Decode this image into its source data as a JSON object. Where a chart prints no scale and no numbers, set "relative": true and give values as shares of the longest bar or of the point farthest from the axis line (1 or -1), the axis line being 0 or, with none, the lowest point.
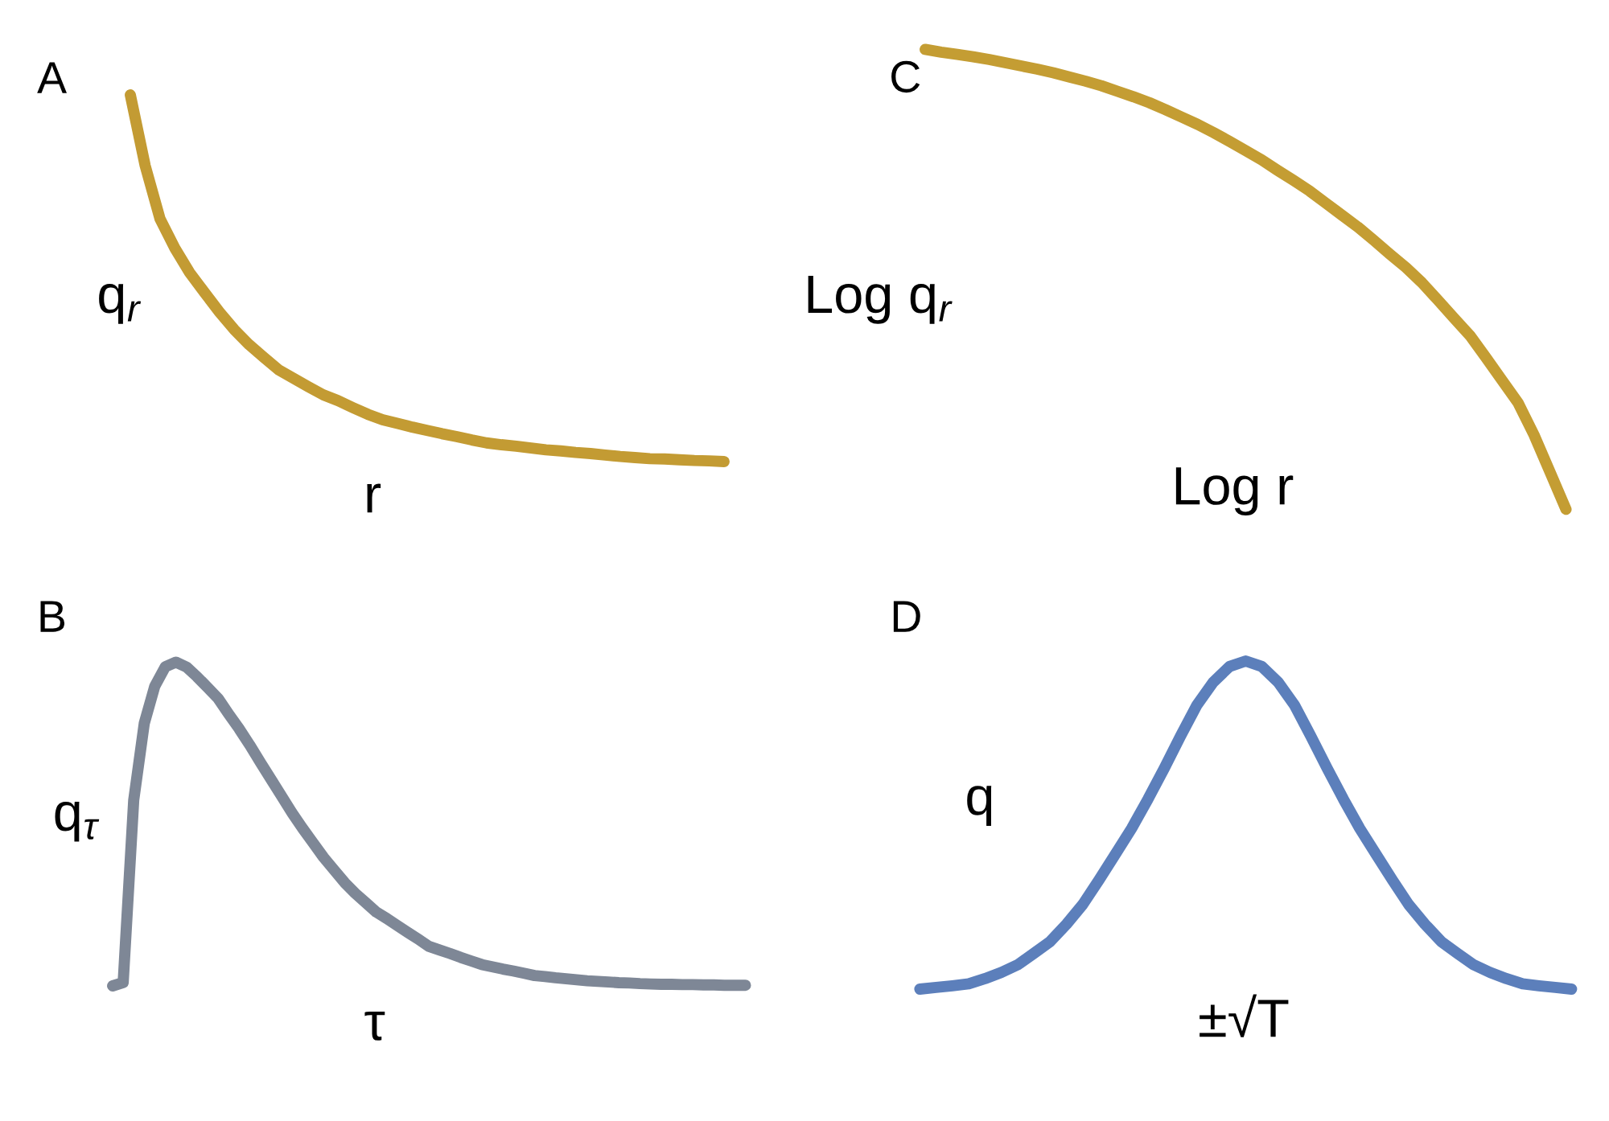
{
  "chart_data": [
    {
      "type": "line",
      "title": "A",
      "xlabel": "r",
      "ylabel": "q$_{r}$",
      "relative": true,
      "categories": [
        null,
        null,
        null,
        null,
        null,
        null,
        null,
        null,
        null,
        null,
        null,
        null,
        null,
        null,
        null,
        null,
        null,
        null,
        null,
        null,
        null,
        null,
        null,
        null,
        null,
        null,
        null,
        null,
        null,
        null,
        null,
        null,
        null,
        null,
        null,
        null,
        null,
        null,
        null,
        null,
        null
      ],
      "series": [
        {
          "color": "#c39b33",
          "values": [
            1.0,
            0.807,
            0.662,
            0.582,
            0.515,
            0.461,
            0.408,
            0.36,
            0.319,
            0.284,
            0.25,
            0.227,
            0.204,
            0.182,
            0.166,
            0.147,
            0.129,
            0.114,
            0.104,
            0.094,
            0.085,
            0.076,
            0.068,
            0.059,
            0.051,
            0.046,
            0.042,
            0.037,
            0.032,
            0.029,
            0.025,
            0.022,
            0.018,
            0.014,
            0.011,
            0.008,
            0.007,
            0.005,
            0.003,
            0.002,
            0
          ]
        }
      ]
    },
    {
      "type": "line",
      "title": "C",
      "xlabel": "Log r",
      "ylabel": "Log q$_{r}$",
      "relative": true,
      "categories": [
        null,
        null,
        null,
        null,
        null,
        null,
        null,
        null,
        null,
        null,
        null,
        null,
        null,
        null,
        null,
        null,
        null,
        null,
        null,
        null,
        null,
        null,
        null,
        null,
        null,
        null,
        null,
        null,
        null,
        null,
        null,
        null,
        null,
        null,
        null,
        null,
        null,
        null,
        null,
        null,
        null
      ],
      "series": [
        {
          "color": "#c49d33",
          "values": [
            1.0,
            0.994,
            0.989,
            0.984,
            0.978,
            0.971,
            0.964,
            0.957,
            0.949,
            0.94,
            0.931,
            0.921,
            0.909,
            0.897,
            0.884,
            0.869,
            0.853,
            0.837,
            0.819,
            0.8,
            0.78,
            0.76,
            0.737,
            0.715,
            0.692,
            0.666,
            0.64,
            0.614,
            0.585,
            0.555,
            0.526,
            0.493,
            0.455,
            0.416,
            0.378,
            0.33,
            0.281,
            0.232,
            0.162,
            0.081,
            0
          ]
        }
      ]
    },
    {
      "type": "line",
      "title": "B",
      "xlabel": "τ",
      "ylabel": "q$_{τ}$",
      "relative": true,
      "categories": [
        null,
        null,
        null,
        null,
        null,
        null,
        null,
        null,
        null,
        null,
        null,
        null,
        null,
        null,
        null,
        null,
        null,
        null,
        null,
        null,
        null,
        null,
        null,
        null,
        null,
        null,
        null,
        null,
        null,
        null,
        null,
        null,
        null,
        null,
        null,
        null,
        null,
        null,
        null,
        null,
        null,
        null,
        null,
        null,
        null,
        null,
        null,
        null,
        null,
        null,
        null,
        null,
        null,
        null,
        null,
        null,
        null,
        null,
        null,
        null,
        null
      ],
      "series": [
        {
          "color": "#7e8796",
          "values": [
            0,
            0.01,
            0.574,
            0.811,
            0.926,
            0.986,
            1.0,
            0.985,
            0.955,
            0.922,
            0.888,
            0.84,
            0.794,
            0.744,
            0.691,
            0.639,
            0.587,
            0.535,
            0.487,
            0.442,
            0.397,
            0.358,
            0.319,
            0.286,
            0.257,
            0.228,
            0.208,
            0.186,
            0.165,
            0.144,
            0.122,
            0.111,
            0.1,
            0.088,
            0.077,
            0.066,
            0.059,
            0.052,
            0.046,
            0.039,
            0.032,
            0.029,
            0.025,
            0.022,
            0.019,
            0.016,
            0.014,
            0.012,
            0.01,
            0.009,
            0.007,
            0.006,
            0.005,
            0.005,
            0.004,
            0.004,
            0.003,
            0.003,
            0.002,
            0.002,
            0.002
          ]
        }
      ]
    },
    {
      "type": "line",
      "title": "D",
      "xlabel": "±√T",
      "ylabel": "q",
      "relative": true,
      "categories": [
        null,
        null,
        null,
        null,
        null,
        null,
        null,
        null,
        null,
        null,
        null,
        null,
        null,
        null,
        null,
        null,
        null,
        null,
        null,
        null,
        null,
        null,
        null,
        null,
        null,
        null,
        null,
        null,
        null,
        null,
        null,
        null,
        null,
        null,
        null,
        null,
        null,
        null,
        null,
        null,
        null
      ],
      "series": [
        {
          "color": "#5c7fbb",
          "values": [
            0,
            0.005,
            0.01,
            0.016,
            0.032,
            0.051,
            0.074,
            0.109,
            0.145,
            0.198,
            0.258,
            0.333,
            0.411,
            0.49,
            0.579,
            0.673,
            0.771,
            0.865,
            0.935,
            0.983,
            1.0,
            0.983,
            0.935,
            0.865,
            0.771,
            0.673,
            0.579,
            0.49,
            0.411,
            0.333,
            0.258,
            0.198,
            0.145,
            0.109,
            0.074,
            0.051,
            0.032,
            0.016,
            0.01,
            0.005,
            0
          ]
        }
      ]
    }
  ]
}
